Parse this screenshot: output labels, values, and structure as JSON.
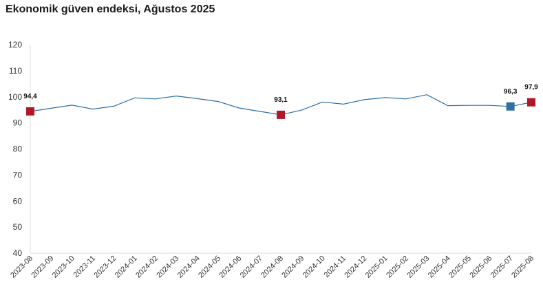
{
  "chart_data": {
    "type": "line",
    "title": "Ekonomik güven endeksi, Ağustos 2025",
    "xlabel": "",
    "ylabel": "",
    "ylim": [
      40,
      120
    ],
    "yticks": [
      40,
      50,
      60,
      70,
      80,
      90,
      100,
      110,
      120
    ],
    "grid": false,
    "categories": [
      "2023-08",
      "2023-09",
      "2023-10",
      "2023-11",
      "2023-12",
      "2024-01",
      "2024-02",
      "2024-03",
      "2024-04",
      "2024-05",
      "2024-06",
      "2024-07",
      "2024-08",
      "2024-09",
      "2024-10",
      "2024-11",
      "2024-12",
      "2025-01",
      "2025-02",
      "2025-03",
      "2025-04",
      "2025-05",
      "2025-06",
      "2025-07",
      "2025-08"
    ],
    "series": [
      {
        "values": [
          94.4,
          95.6,
          96.8,
          95.3,
          96.4,
          99.6,
          99.2,
          100.3,
          99.3,
          98.2,
          95.7,
          94.4,
          93.1,
          94.9,
          98.0,
          97.2,
          98.9,
          99.7,
          99.2,
          100.8,
          96.6,
          96.7,
          96.7,
          96.3,
          97.9
        ],
        "color": "#2a6ea6"
      }
    ],
    "highlights": [
      {
        "index": 0,
        "label": "94,4",
        "color": "#b0182a"
      },
      {
        "index": 12,
        "label": "93,1",
        "color": "#b0182a"
      },
      {
        "index": 23,
        "label": "96,3",
        "color": "#2e6fa6"
      },
      {
        "index": 24,
        "label": "97,9",
        "color": "#b0182a"
      }
    ]
  }
}
